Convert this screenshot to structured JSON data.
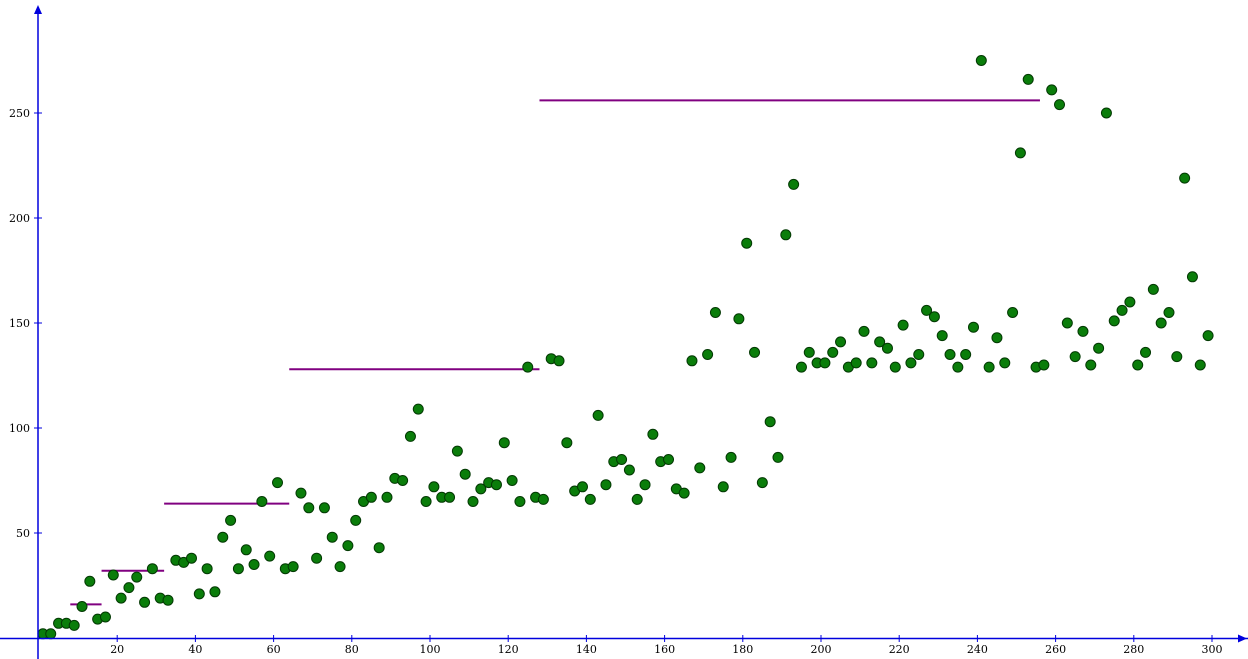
{
  "chart_data": {
    "type": "scatter",
    "title": "",
    "xlabel": "",
    "ylabel": "",
    "xlim": [
      -1,
      305
    ],
    "ylim": [
      -12,
      293
    ],
    "x_ticks": [
      20,
      40,
      60,
      80,
      100,
      120,
      140,
      160,
      180,
      200,
      220,
      240,
      260,
      280,
      300
    ],
    "y_ticks": [
      50,
      100,
      150,
      200,
      250
    ],
    "grid": false,
    "legend": "none",
    "colors": {
      "axis": "#0000dd",
      "point_fill": "#0a7d0a",
      "point_stroke": "#033903",
      "segment": "#800080"
    },
    "points": [
      [
        1,
        2
      ],
      [
        3,
        2
      ],
      [
        5,
        7
      ],
      [
        7,
        7
      ],
      [
        9,
        6
      ],
      [
        11,
        15
      ],
      [
        13,
        27
      ],
      [
        15,
        9
      ],
      [
        17,
        10
      ],
      [
        19,
        30
      ],
      [
        21,
        19
      ],
      [
        23,
        24
      ],
      [
        25,
        29
      ],
      [
        27,
        17
      ],
      [
        29,
        33
      ],
      [
        31,
        19
      ],
      [
        33,
        18
      ],
      [
        35,
        37
      ],
      [
        37,
        36
      ],
      [
        39,
        38
      ],
      [
        41,
        21
      ],
      [
        43,
        33
      ],
      [
        45,
        22
      ],
      [
        47,
        48
      ],
      [
        49,
        56
      ],
      [
        51,
        33
      ],
      [
        53,
        42
      ],
      [
        55,
        35
      ],
      [
        57,
        65
      ],
      [
        59,
        39
      ],
      [
        61,
        74
      ],
      [
        63,
        33
      ],
      [
        65,
        34
      ],
      [
        67,
        69
      ],
      [
        69,
        62
      ],
      [
        71,
        38
      ],
      [
        73,
        62
      ],
      [
        75,
        48
      ],
      [
        77,
        34
      ],
      [
        79,
        44
      ],
      [
        81,
        56
      ],
      [
        83,
        65
      ],
      [
        85,
        67
      ],
      [
        87,
        43
      ],
      [
        89,
        67
      ],
      [
        91,
        76
      ],
      [
        93,
        75
      ],
      [
        95,
        96
      ],
      [
        97,
        109
      ],
      [
        99,
        65
      ],
      [
        101,
        72
      ],
      [
        103,
        67
      ],
      [
        105,
        67
      ],
      [
        107,
        89
      ],
      [
        109,
        78
      ],
      [
        111,
        65
      ],
      [
        113,
        71
      ],
      [
        115,
        74
      ],
      [
        117,
        73
      ],
      [
        119,
        93
      ],
      [
        121,
        75
      ],
      [
        123,
        65
      ],
      [
        125,
        129
      ],
      [
        127,
        67
      ],
      [
        129,
        66
      ],
      [
        131,
        133
      ],
      [
        133,
        132
      ],
      [
        135,
        93
      ],
      [
        137,
        70
      ],
      [
        139,
        72
      ],
      [
        141,
        66
      ],
      [
        143,
        106
      ],
      [
        145,
        73
      ],
      [
        147,
        84
      ],
      [
        149,
        85
      ],
      [
        151,
        80
      ],
      [
        153,
        66
      ],
      [
        155,
        73
      ],
      [
        157,
        97
      ],
      [
        159,
        84
      ],
      [
        161,
        85
      ],
      [
        163,
        71
      ],
      [
        165,
        69
      ],
      [
        167,
        132
      ],
      [
        169,
        81
      ],
      [
        171,
        135
      ],
      [
        173,
        155
      ],
      [
        175,
        72
      ],
      [
        177,
        86
      ],
      [
        179,
        152
      ],
      [
        181,
        188
      ],
      [
        183,
        136
      ],
      [
        185,
        74
      ],
      [
        187,
        103
      ],
      [
        189,
        86
      ],
      [
        191,
        192
      ],
      [
        193,
        216
      ],
      [
        195,
        129
      ],
      [
        197,
        136
      ],
      [
        199,
        131
      ],
      [
        201,
        131
      ],
      [
        203,
        136
      ],
      [
        205,
        141
      ],
      [
        207,
        129
      ],
      [
        209,
        131
      ],
      [
        211,
        146
      ],
      [
        213,
        131
      ],
      [
        215,
        141
      ],
      [
        217,
        138
      ],
      [
        219,
        129
      ],
      [
        221,
        149
      ],
      [
        223,
        131
      ],
      [
        225,
        135
      ],
      [
        227,
        156
      ],
      [
        229,
        153
      ],
      [
        231,
        144
      ],
      [
        233,
        135
      ],
      [
        235,
        129
      ],
      [
        237,
        135
      ],
      [
        239,
        148
      ],
      [
        241,
        275
      ],
      [
        243,
        129
      ],
      [
        245,
        143
      ],
      [
        247,
        131
      ],
      [
        249,
        155
      ],
      [
        251,
        231
      ],
      [
        253,
        266
      ],
      [
        255,
        129
      ],
      [
        257,
        130
      ],
      [
        259,
        261
      ],
      [
        261,
        254
      ],
      [
        263,
        150
      ],
      [
        265,
        134
      ],
      [
        267,
        146
      ],
      [
        269,
        130
      ],
      [
        271,
        138
      ],
      [
        273,
        250
      ],
      [
        275,
        151
      ],
      [
        277,
        156
      ],
      [
        279,
        160
      ],
      [
        281,
        130
      ],
      [
        283,
        136
      ],
      [
        285,
        166
      ],
      [
        287,
        150
      ],
      [
        289,
        155
      ],
      [
        291,
        134
      ],
      [
        293,
        219
      ],
      [
        295,
        172
      ],
      [
        297,
        130
      ],
      [
        299,
        144
      ]
    ],
    "segments": [
      {
        "x1": 8,
        "x2": 16,
        "y": 16
      },
      {
        "x1": 16,
        "x2": 32,
        "y": 32
      },
      {
        "x1": 32,
        "x2": 64,
        "y": 64
      },
      {
        "x1": 64,
        "x2": 128,
        "y": 128
      },
      {
        "x1": 128,
        "x2": 256,
        "y": 256
      }
    ]
  }
}
